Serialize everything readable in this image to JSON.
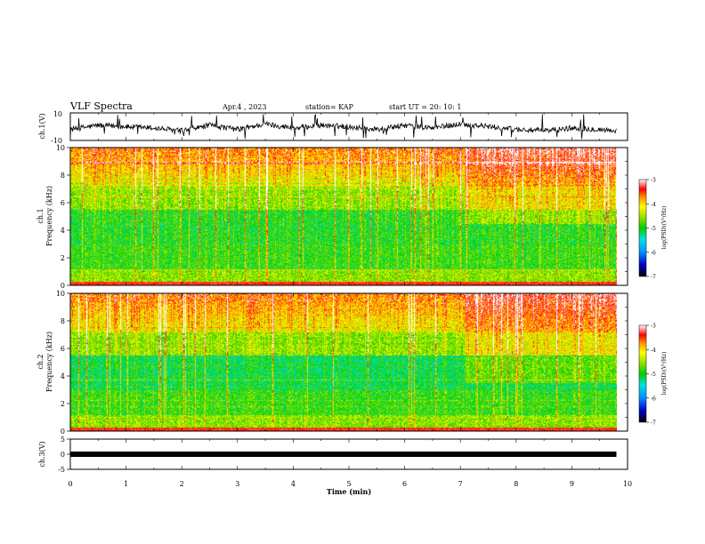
{
  "header": {
    "title": "VLF Spectra",
    "date": "Apr.4 , 2023",
    "station": "station= KAP",
    "start": "start UT =  20: 10: 1"
  },
  "chart_data": [
    {
      "type": "line",
      "name": "ch1-waveform",
      "ylabel": "ch.1(V)",
      "ylim": [
        -10,
        10
      ],
      "yticks": [
        10,
        -10
      ],
      "xlim": [
        0,
        10
      ],
      "series": [
        {
          "x": [
            0,
            0.5,
            1,
            1.5,
            2,
            2.5,
            3,
            3.5,
            4,
            4.5,
            5,
            5.5,
            6,
            6.5,
            7,
            7.5,
            8,
            8.5,
            9,
            9.5,
            9.8
          ],
          "values": [
            -2,
            1,
            0,
            -1,
            -3,
            1,
            -2,
            2,
            -1,
            1,
            0,
            -2,
            1,
            -1,
            2,
            0,
            -2,
            -3,
            -1,
            -2,
            -3
          ]
        }
      ]
    },
    {
      "type": "heatmap",
      "name": "ch1-spectrogram",
      "ylabel": "ch.1\nFrequency (kHz)",
      "ylim": [
        0,
        10
      ],
      "yticks": [
        0,
        2,
        4,
        6,
        8,
        10
      ],
      "xlim": [
        0,
        10
      ],
      "data_end_min": 9.8,
      "colorbar": {
        "label": "log(PSD)(V²/Hz)",
        "range": [
          -7,
          -3
        ],
        "ticks": [
          -3,
          -4,
          -5,
          -6,
          -7
        ]
      }
    },
    {
      "type": "heatmap",
      "name": "ch2-spectrogram",
      "ylabel": "ch.2\nFrequency (kHz)",
      "ylim": [
        0,
        10
      ],
      "yticks": [
        0,
        2,
        4,
        6,
        8,
        10
      ],
      "xlim": [
        0,
        10
      ],
      "data_end_min": 9.8,
      "colorbar": {
        "label": "log(PSD)(V²/Hz)",
        "range": [
          -7,
          -3
        ],
        "ticks": [
          -3,
          -4,
          -5,
          -6,
          -7
        ]
      }
    },
    {
      "type": "line",
      "name": "ch3-signal",
      "ylabel": "ch.3(V)",
      "ylim": [
        -5,
        5
      ],
      "yticks": [
        5,
        0,
        -5
      ],
      "xlim": [
        0,
        10
      ],
      "xlabel": "Time (min)",
      "xticks": [
        0,
        1,
        2,
        3,
        4,
        5,
        6,
        7,
        8,
        9,
        10
      ],
      "series": [
        {
          "x": [
            0,
            9.8
          ],
          "values": [
            0,
            0
          ]
        }
      ]
    }
  ]
}
